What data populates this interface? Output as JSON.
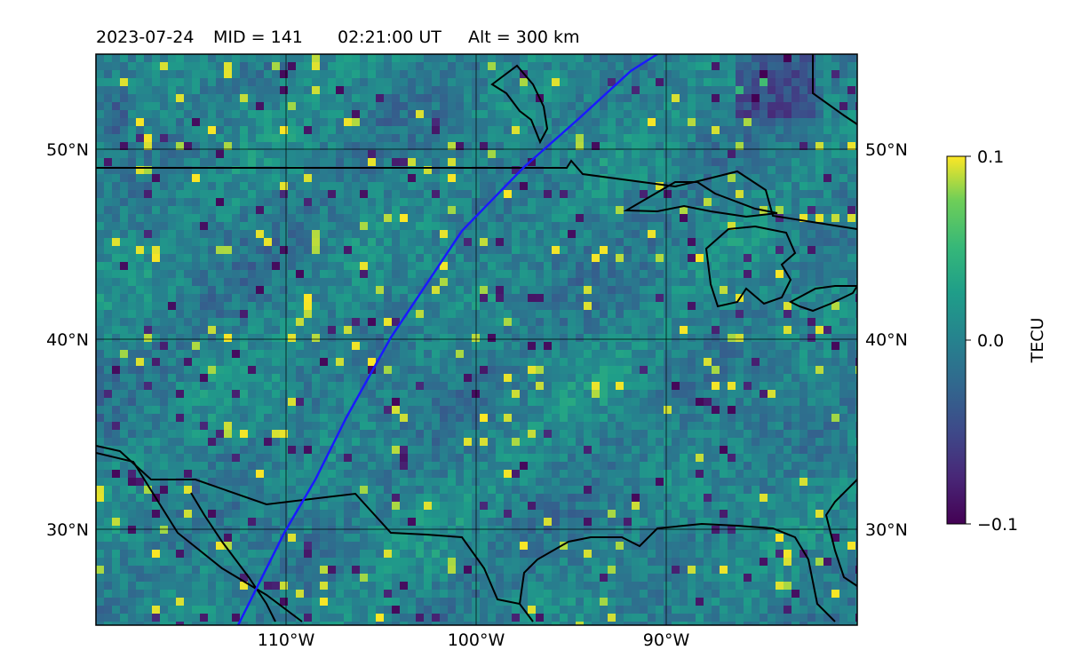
{
  "header": {
    "date": "2023-07-24",
    "mid": "MID = 141",
    "time": "02:21:00  UT",
    "alt": "Alt = 300 km"
  },
  "map": {
    "lon_range": [
      -120,
      -80
    ],
    "lat_range": [
      25,
      55
    ],
    "lon_ticks": [
      "110°W",
      "100°W",
      "90°W"
    ],
    "lat_ticks": [
      "50°N",
      "40°N",
      "30°N"
    ],
    "field": "TEC perturbation (pixelated)",
    "coastline_color": "#000000",
    "track_color": "#1a1aff"
  },
  "colorbar": {
    "label": "TECU",
    "ticks": [
      "0.1",
      "0.0",
      "−0.1"
    ],
    "vmin": -0.1,
    "vmax": 0.1,
    "colormap": "viridis"
  }
}
